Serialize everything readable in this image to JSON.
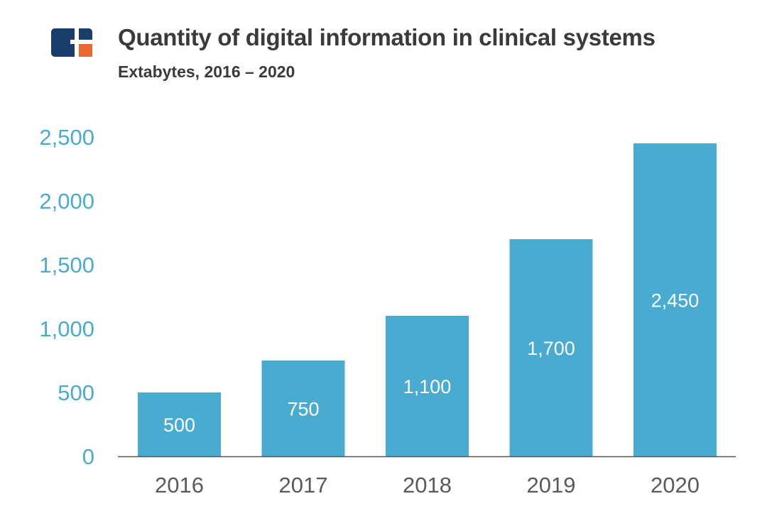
{
  "header": {
    "title": "Quantity of digital information in clinical systems",
    "subtitle": "Extabytes, 2016 – 2020",
    "logo_icon": "brand-logo-icon"
  },
  "colors": {
    "bar": "#4aabd1",
    "y_tick_label": "#4aabd1",
    "x_tick_label": "#5a5a5a",
    "bar_label": "#ffffff",
    "axis": "#555555",
    "title": "#3a3a3a",
    "logo_primary": "#1a3e6b",
    "logo_accent": "#e8682f"
  },
  "chart_data": {
    "type": "bar",
    "title": "Quantity of digital information in clinical systems",
    "subtitle": "Extabytes, 2016 – 2020",
    "xlabel": "",
    "ylabel": "",
    "categories": [
      "2016",
      "2017",
      "2018",
      "2019",
      "2020"
    ],
    "values": [
      500,
      750,
      1100,
      1700,
      2450
    ],
    "value_labels": [
      "500",
      "750",
      "1,100",
      "1,700",
      "2,450"
    ],
    "ylim": [
      0,
      2500
    ],
    "y_ticks": [
      0,
      500,
      1000,
      1500,
      2000,
      2500
    ],
    "y_tick_labels": [
      "0",
      "500",
      "1,000",
      "1,500",
      "2,000",
      "2,500"
    ],
    "grid": false,
    "legend": "none"
  }
}
